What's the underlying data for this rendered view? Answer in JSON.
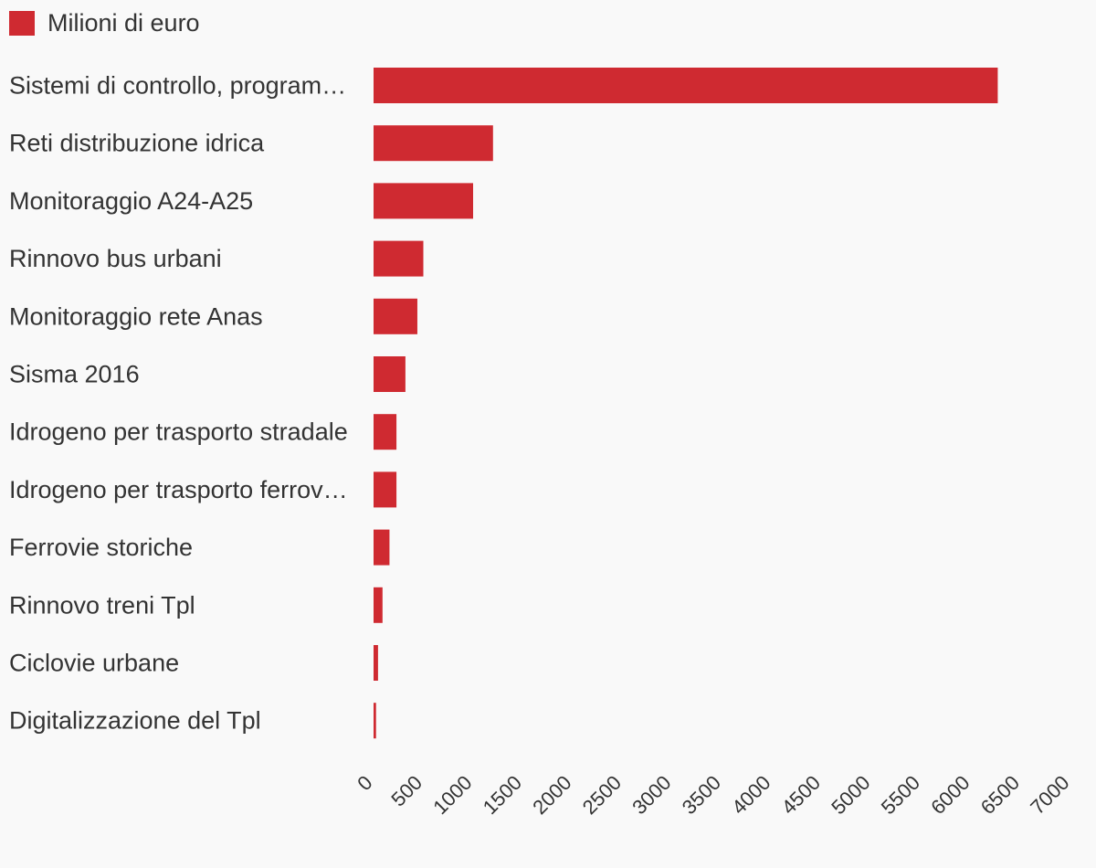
{
  "legend": {
    "label": "Milioni di euro",
    "color": "#cf2a31"
  },
  "chart_data": {
    "type": "bar",
    "orientation": "horizontal",
    "categories": [
      "Sistemi di controllo, program…",
      "Reti distribuzione idrica",
      "Monitoraggio A24-A25",
      "Rinnovo bus urbani",
      "Monitoraggio rete Anas",
      "Sisma 2016",
      "Idrogeno per trasporto stradale",
      "Idrogeno per trasporto ferrov…",
      "Ferrovie storiche",
      "Rinnovo treni Tpl",
      "Ciclovie urbane",
      "Digitalizzazione del Tpl"
    ],
    "series": [
      {
        "name": "Milioni di euro",
        "values": [
          6270,
          1200,
          1000,
          500,
          440,
          320,
          230,
          230,
          160,
          90,
          45,
          25
        ],
        "color": "#cf2a31"
      }
    ],
    "xlim": [
      0,
      7000
    ],
    "xticks": [
      "0",
      "500",
      "1000",
      "1500",
      "2000",
      "2500",
      "3000",
      "3500",
      "4000",
      "4500",
      "5000",
      "5500",
      "6000",
      "6500",
      "7000"
    ],
    "tick_values": [
      0,
      500,
      1000,
      1500,
      2000,
      2500,
      3000,
      3500,
      4000,
      4500,
      5000,
      5500,
      6000,
      6500,
      7000
    ],
    "grid": false,
    "legend_position": "top-left"
  }
}
